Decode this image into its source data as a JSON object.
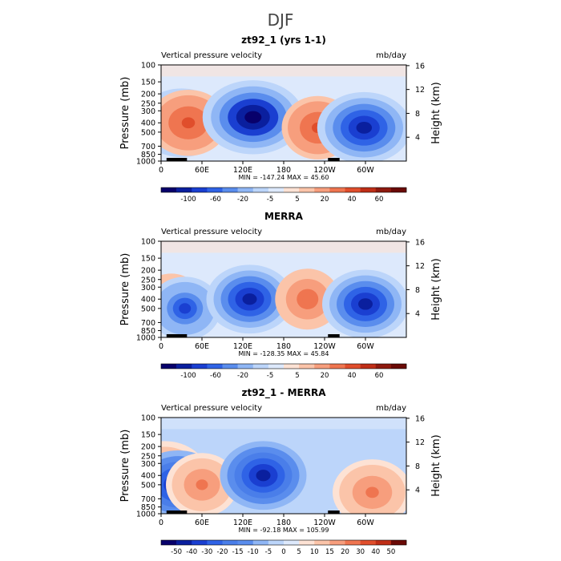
{
  "figure_title": "DJF",
  "chart_data": [
    {
      "type": "heatmap",
      "title": "zt92_1 (yrs 1-1)",
      "left_label": "Vertical pressure velocity",
      "units": "mb/day",
      "ylabel": "Pressure (mb)",
      "ylabel_right": "Height (km)",
      "y_ticks": [
        "100",
        "150",
        "200",
        "250",
        "300",
        "400",
        "500",
        "700",
        "850",
        "1000"
      ],
      "y_right_ticks": [
        "16",
        "12",
        "8",
        "4"
      ],
      "x_ticks": [
        "0",
        "60E",
        "120E",
        "180",
        "120W",
        "60W"
      ],
      "stats": "MIN = -147.24   MAX =  45.60",
      "colorbar_ticks": [
        "-100",
        "-60",
        "-20",
        "-5",
        "5",
        "20",
        "40",
        "60"
      ],
      "colorbar_colors": [
        "#08006b",
        "#0a1f9e",
        "#1a3fd1",
        "#2f63e6",
        "#5a8ded",
        "#8fb6f5",
        "#bcd5fa",
        "#dde9fc",
        "#fde2d4",
        "#fbc4a9",
        "#f79e7d",
        "#ef7550",
        "#e04e2c",
        "#bf2e17",
        "#8e1a0f",
        "#6a0a06"
      ],
      "features": [
        {
          "kind": "descent",
          "lon": 10,
          "p": 400,
          "strength": 0.5
        },
        {
          "kind": "ascent",
          "lon": 30,
          "p": 400,
          "strength": 0.8
        },
        {
          "kind": "descent",
          "lon": 40,
          "p": 400,
          "strength": 0.7
        },
        {
          "kind": "ascent",
          "lon": 135,
          "p": 350,
          "strength": 1.0
        },
        {
          "kind": "descent",
          "lon": 230,
          "p": 450,
          "strength": 0.6
        },
        {
          "kind": "ascent",
          "lon": 298,
          "p": 450,
          "strength": 0.9
        }
      ]
    },
    {
      "type": "heatmap",
      "title": "MERRA",
      "left_label": "Vertical pressure velocity",
      "units": "mb/day",
      "ylabel": "Pressure (mb)",
      "ylabel_right": "Height (km)",
      "y_ticks": [
        "100",
        "150",
        "200",
        "250",
        "300",
        "400",
        "500",
        "700",
        "850",
        "1000"
      ],
      "y_right_ticks": [
        "16",
        "12",
        "8",
        "4"
      ],
      "x_ticks": [
        "0",
        "60E",
        "120E",
        "180",
        "120W",
        "60W"
      ],
      "stats": "MIN = -128.35   MAX =  45.84",
      "colorbar_ticks": [
        "-100",
        "-60",
        "-20",
        "-5",
        "5",
        "20",
        "40",
        "60"
      ],
      "colorbar_colors": [
        "#08006b",
        "#0a1f9e",
        "#1a3fd1",
        "#2f63e6",
        "#5a8ded",
        "#8fb6f5",
        "#bcd5fa",
        "#dde9fc",
        "#fde2d4",
        "#fbc4a9",
        "#f79e7d",
        "#ef7550",
        "#e04e2c",
        "#bf2e17",
        "#8e1a0f",
        "#6a0a06"
      ],
      "features": [
        {
          "kind": "descent",
          "lon": 15,
          "p": 450,
          "strength": 0.5
        },
        {
          "kind": "ascent",
          "lon": 35,
          "p": 500,
          "strength": 0.6
        },
        {
          "kind": "ascent",
          "lon": 130,
          "p": 400,
          "strength": 0.8
        },
        {
          "kind": "descent",
          "lon": 215,
          "p": 400,
          "strength": 0.5
        },
        {
          "kind": "ascent",
          "lon": 300,
          "p": 450,
          "strength": 0.8
        }
      ]
    },
    {
      "type": "heatmap",
      "title": "zt92_1 - MERRA",
      "left_label": "Vertical pressure velocity",
      "units": "mb/day",
      "ylabel": "Pressure (mb)",
      "ylabel_right": "Height (km)",
      "y_ticks": [
        "100",
        "150",
        "200",
        "250",
        "300",
        "400",
        "500",
        "700",
        "850",
        "1000"
      ],
      "y_right_ticks": [
        "16",
        "12",
        "8",
        "4"
      ],
      "x_ticks": [
        "0",
        "60E",
        "120E",
        "180",
        "120W",
        "60W"
      ],
      "stats": "MIN = -92.18   MAX = 105.99",
      "colorbar_ticks": [
        "-50",
        "-40",
        "-30",
        "-20",
        "-15",
        "-10",
        "-5",
        "0",
        "5",
        "10",
        "15",
        "20",
        "30",
        "40",
        "50"
      ],
      "colorbar_colors": [
        "#08006b",
        "#0a1f9e",
        "#1a3fd1",
        "#2f63e6",
        "#4a7ee9",
        "#5a8ded",
        "#8fb6f5",
        "#bcd5fa",
        "#dde9fc",
        "#fde2d4",
        "#fbc4a9",
        "#f79e7d",
        "#ef7550",
        "#e04e2c",
        "#bf2e17",
        "#6a0a06"
      ],
      "features": [
        {
          "kind": "descent",
          "lon": 5,
          "p": 400,
          "strength": 0.8
        },
        {
          "kind": "ascent",
          "lon": 25,
          "p": 500,
          "strength": 0.8
        },
        {
          "kind": "descent",
          "lon": 60,
          "p": 500,
          "strength": 0.6
        },
        {
          "kind": "ascent",
          "lon": 150,
          "p": 400,
          "strength": 0.8
        },
        {
          "kind": "descent",
          "lon": 310,
          "p": 600,
          "strength": 0.7
        }
      ]
    }
  ]
}
